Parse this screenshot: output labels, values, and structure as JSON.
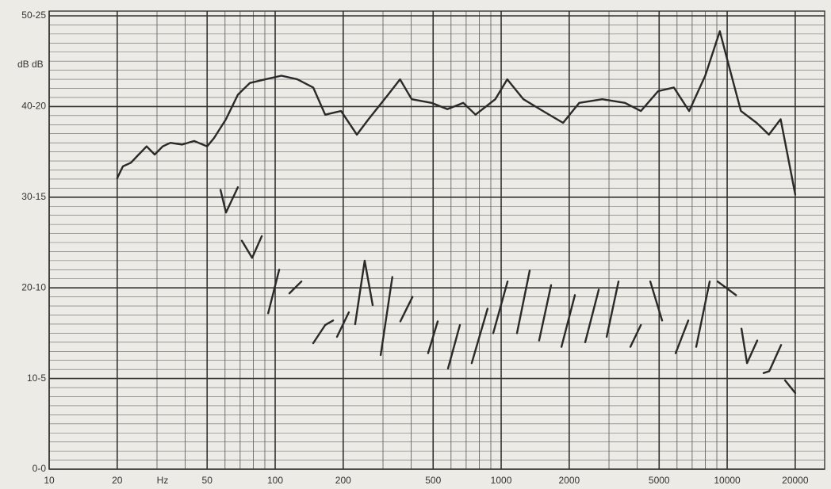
{
  "chart_data": {
    "type": "line",
    "y_label": "dB dB",
    "x_label": "Hz",
    "log_x": true,
    "grid": true,
    "minor_grid": true,
    "xlim": [
      10,
      27000
    ],
    "ylim": [
      0,
      50
    ],
    "xticks": [
      10,
      20,
      50,
      100,
      200,
      500,
      1000,
      2000,
      5000,
      10000,
      20000
    ],
    "yticks": [
      {
        "value": 0,
        "label": "0-0"
      },
      {
        "value": 10,
        "label": "10-5"
      },
      {
        "value": 20,
        "label": "20-10"
      },
      {
        "value": 30,
        "label": "30-15"
      },
      {
        "value": 40,
        "label": "40-20"
      },
      {
        "value": 50,
        "label": "50-25"
      }
    ],
    "series": [
      {
        "color": "#2a2a2a",
        "x": [
          20,
          21.2,
          23,
          24.9,
          27,
          29.3,
          31.8,
          34.4,
          38.8,
          43.8,
          50,
          53.6,
          60.6,
          68.4,
          77.3,
          90.6,
          106.6,
          125.4,
          147.4,
          166.5,
          195.7,
          230,
          259,
          316,
          357,
          402,
          492,
          578,
          680,
          770,
          942,
          1064,
          1254,
          1531,
          1879,
          2215,
          2800,
          3530,
          4150,
          4950,
          5810,
          6790,
          8000,
          9280,
          10000,
          11500,
          13500,
          15300,
          17250,
          20000
        ],
        "values": [
          32.1,
          33.4,
          33.8,
          34.7,
          35.6,
          34.7,
          35.6,
          36.0,
          35.8,
          36.2,
          35.6,
          36.5,
          38.6,
          41.3,
          42.6,
          43.0,
          43.4,
          43.0,
          42.1,
          39.1,
          39.5,
          36.9,
          38.6,
          41.3,
          43.0,
          40.8,
          40.4,
          39.7,
          40.4,
          39.1,
          40.8,
          43.0,
          40.8,
          39.5,
          38.2,
          40.4,
          40.8,
          40.4,
          39.5,
          41.7,
          42.1,
          39.5,
          43.4,
          48.3,
          45.2,
          39.5,
          38.2,
          36.9,
          38.6,
          30.3
        ]
      },
      {
        "color": "#2a2a2a",
        "x": [
          57.3,
          60.6,
          68.4,
          null,
          71.2,
          79.1,
          87.2,
          null,
          93.1,
          104.2,
          null,
          115.6,
          130.6,
          null,
          147.4,
          166.5,
          180.4,
          null,
          187.8,
          211.8,
          null,
          226,
          249,
          270,
          null,
          293,
          330,
          null,
          358,
          405,
          null,
          475,
          524,
          null,
          582,
          657,
          null,
          741,
          871,
          null,
          922,
          1067,
          null,
          1175,
          1337,
          null,
          1472,
          1663,
          null,
          1848,
          2120,
          null,
          2353,
          2702,
          null,
          2930,
          3305,
          null,
          3732,
          4150,
          null,
          4570,
          5155,
          null,
          5915,
          6730,
          null,
          7295,
          8370,
          null,
          9075,
          10940,
          null,
          11570,
          12240,
          13590,
          null,
          14490,
          15350,
          17330,
          null,
          18030,
          20000
        ],
        "values": [
          30.8,
          28.3,
          31.1,
          null,
          25.2,
          23.3,
          25.7,
          null,
          17.2,
          22.0,
          null,
          19.4,
          20.7,
          null,
          13.9,
          15.9,
          16.4,
          null,
          14.6,
          17.3,
          null,
          16.0,
          23.0,
          18.1,
          null,
          12.6,
          21.2,
          null,
          16.3,
          19.0,
          null,
          12.8,
          16.3,
          null,
          11.1,
          15.9,
          null,
          11.7,
          17.7,
          null,
          15.0,
          20.7,
          null,
          15.0,
          21.9,
          null,
          14.2,
          20.3,
          null,
          13.5,
          19.2,
          null,
          14.0,
          19.8,
          null,
          14.6,
          20.7,
          null,
          13.5,
          15.9,
          null,
          20.7,
          16.4,
          null,
          12.8,
          16.4,
          null,
          13.5,
          20.7,
          null,
          20.7,
          19.2,
          null,
          15.5,
          11.7,
          14.2,
          null,
          10.6,
          10.8,
          13.7,
          null,
          9.8,
          8.4
        ]
      }
    ]
  }
}
